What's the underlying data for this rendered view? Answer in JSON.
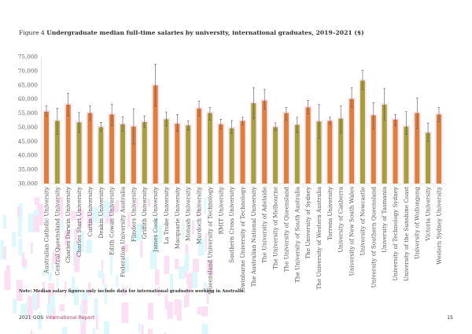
{
  "figure": {
    "label": "Figure 4",
    "title": "Undergraduate median full-time salaries by university, international graduates, 2019–2021 ($)"
  },
  "note": "Note: Median salary figures only include data for international graduates working in Australia.",
  "footer": {
    "report_year": "2021 GOS",
    "report_name": "International Report",
    "page_number": "15"
  },
  "colors": {
    "bar_a": "#e07f3a",
    "bar_b": "#a5a03a",
    "error_bar": "#555555",
    "axis_text": "#666666",
    "bar_halo": "#fde6f4"
  },
  "chart_data": {
    "type": "bar",
    "title": "Undergraduate median full-time salaries by university, international graduates, 2019–2021 ($)",
    "xlabel": "",
    "ylabel": "",
    "ylim": [
      30000,
      75000
    ],
    "yticks": [
      "30,000",
      "35,000",
      "40,000",
      "45,000",
      "50,000",
      "55,000",
      "60,000",
      "65,000",
      "70,000",
      "75,000"
    ],
    "ytick_values": [
      30000,
      35000,
      40000,
      45000,
      50000,
      55000,
      60000,
      65000,
      70000,
      75000
    ],
    "grid": false,
    "error_bars": true,
    "categories": [
      "Australian Catholic University",
      "Central Queensland University",
      "Charles Darwin University",
      "Charles Sturt University",
      "Curtin University",
      "Deakin University",
      "Edith Cowan University",
      "Federation University Australia",
      "Flinders University",
      "Griffith University",
      "James Cook University",
      "La Trobe University",
      "Macquarie University",
      "Monash University",
      "Murdoch University",
      "Queensland University of Technology",
      "RMIT University",
      "Southern Cross University",
      "Swinburne University of Technology",
      "The Australian National University",
      "The University of Adelaide",
      "The University of Melbourne",
      "The University of Queensland",
      "The University of South Australia",
      "The University of Sydney",
      "The University of Western Australia",
      "Torrens University",
      "University of Canberra",
      "University of New South Wales",
      "University of Newcastle",
      "University of Southern Queensland",
      "University of Tasmania",
      "University of Technology Sydney",
      "University of the Sunshine Coast",
      "University of Wollongong",
      "Victoria University",
      "Western Sydney University"
    ],
    "values": [
      55500,
      52200,
      58000,
      51700,
      55000,
      50000,
      54500,
      51000,
      50200,
      51800,
      64800,
      52800,
      51200,
      50600,
      56600,
      55000,
      51000,
      49600,
      52200,
      58500,
      59400,
      50000,
      55000,
      50800,
      57000,
      52000,
      52200,
      53000,
      60000,
      66500,
      54200,
      58000,
      52700,
      50200,
      55000,
      48000,
      54500
    ],
    "error_low": [
      54000,
      47500,
      54000,
      48000,
      52500,
      48500,
      50500,
      48500,
      44000,
      50000,
      57500,
      50500,
      48500,
      49000,
      54000,
      52500,
      49500,
      47800,
      50800,
      53000,
      56500,
      48800,
      52500,
      48000,
      54800,
      46000,
      51000,
      48000,
      57000,
      63300,
      49500,
      52500,
      50500,
      47500,
      49500,
      45000,
      52000
    ],
    "error_high": [
      57500,
      56700,
      62000,
      55200,
      57500,
      51700,
      58200,
      53700,
      56500,
      54000,
      72300,
      55400,
      54500,
      52300,
      59300,
      57000,
      52800,
      52400,
      53500,
      64000,
      63500,
      51500,
      57000,
      53500,
      59500,
      58000,
      53500,
      57500,
      64000,
      70200,
      58700,
      63800,
      54500,
      55500,
      60400,
      51500,
      57000
    ]
  }
}
